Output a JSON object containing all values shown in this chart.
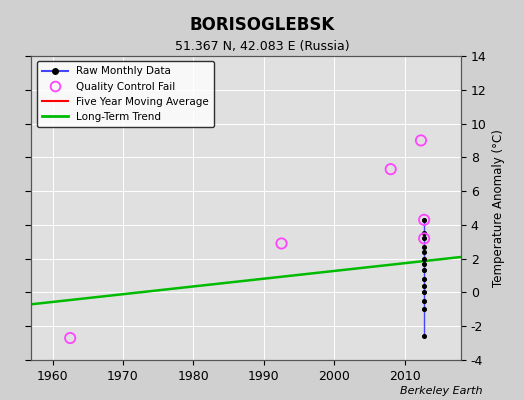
{
  "title": "BORISOGLEBSK",
  "subtitle": "51.367 N, 42.083 E (Russia)",
  "ylabel": "Temperature Anomaly (°C)",
  "watermark": "Berkeley Earth",
  "background_color": "#d0d0d0",
  "plot_bg_color": "#e0e0e0",
  "xlim": [
    1957,
    2018
  ],
  "ylim": [
    -4,
    14
  ],
  "xticks": [
    1960,
    1970,
    1980,
    1990,
    2000,
    2010
  ],
  "yticks": [
    -4,
    -2,
    0,
    2,
    4,
    6,
    8,
    10,
    12,
    14
  ],
  "long_term_trend": {
    "x": [
      1957,
      2018
    ],
    "y": [
      -0.7,
      2.1
    ],
    "color": "#00bb00",
    "linewidth": 1.8
  },
  "raw_monthly_points": [
    [
      2012.75,
      4.3
    ],
    [
      2012.75,
      3.5
    ],
    [
      2012.75,
      3.2
    ],
    [
      2012.75,
      2.7
    ],
    [
      2012.75,
      2.4
    ],
    [
      2012.75,
      2.0
    ],
    [
      2012.75,
      1.7
    ],
    [
      2012.75,
      1.3
    ],
    [
      2012.75,
      0.8
    ],
    [
      2012.75,
      0.4
    ],
    [
      2012.75,
      0.0
    ],
    [
      2012.75,
      -0.5
    ],
    [
      2012.75,
      -1.0
    ],
    [
      2012.75,
      -2.6
    ]
  ],
  "raw_color": "#4444ff",
  "raw_dot_color": "#000000",
  "qc_fail_points": [
    [
      1962.5,
      -2.7
    ],
    [
      1992.5,
      2.9
    ],
    [
      2008.0,
      7.3
    ],
    [
      2012.3,
      9.0
    ],
    [
      2012.75,
      4.3
    ],
    [
      2012.75,
      3.2
    ]
  ],
  "qc_color": "#ff44ff",
  "legend_loc": "upper left"
}
